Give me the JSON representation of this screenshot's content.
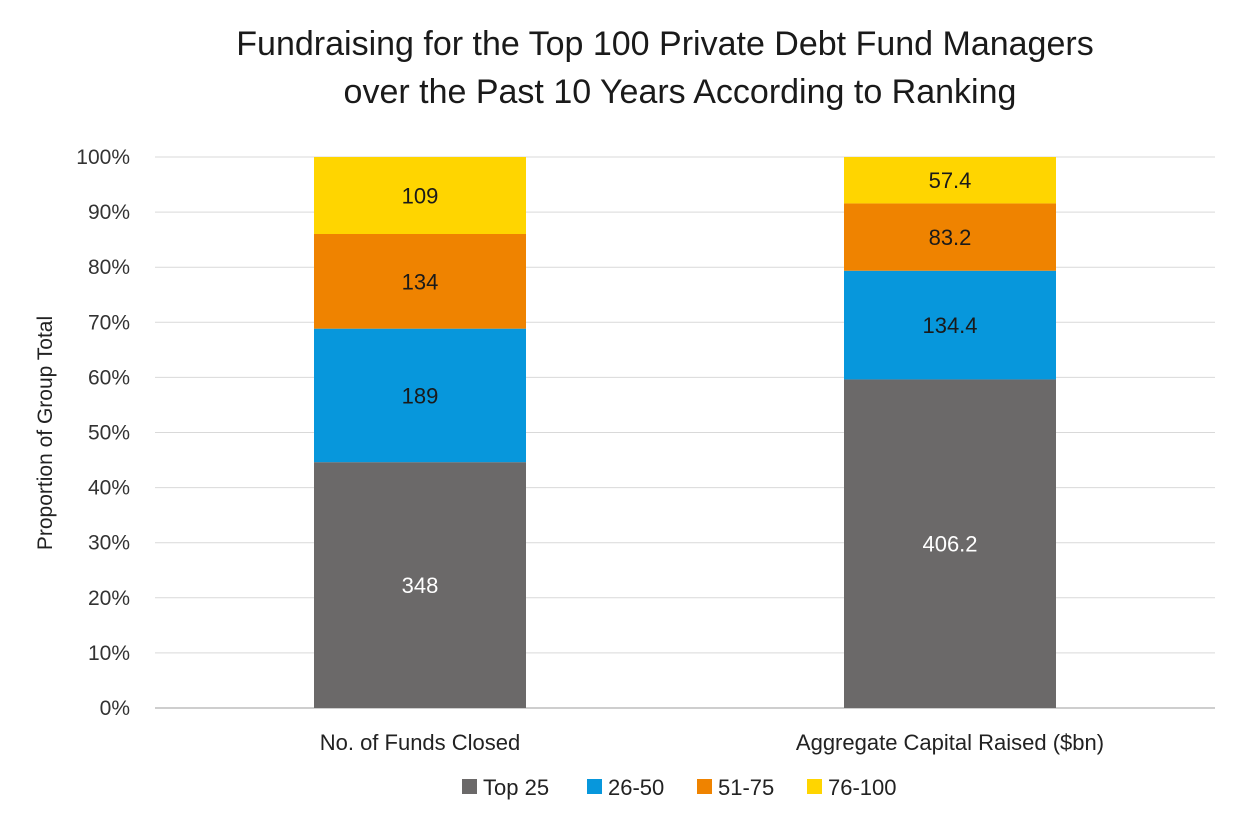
{
  "chart_data": {
    "type": "bar",
    "stacked": true,
    "normalized": true,
    "title": [
      "Fundraising for the Top 100 Private Debt Fund Managers",
      "over the Past 10 Years According to Ranking"
    ],
    "ylabel": "Proportion of Group Total",
    "ylim": [
      0,
      100
    ],
    "yticks": [
      "0%",
      "10%",
      "20%",
      "30%",
      "40%",
      "50%",
      "60%",
      "70%",
      "80%",
      "90%",
      "100%"
    ],
    "categories": [
      "No. of Funds Closed",
      "Aggregate Capital Raised ($bn)"
    ],
    "series": [
      {
        "name": "Top 25",
        "color": "#6b6969",
        "label_color": "#ffffff",
        "values": [
          348,
          406.2
        ],
        "labels": [
          "348",
          "406.2"
        ]
      },
      {
        "name": "26-50",
        "color": "#0797dc",
        "label_color": "#1a1a1a",
        "values": [
          189,
          134.4
        ],
        "labels": [
          "189",
          "134.4"
        ]
      },
      {
        "name": "51-75",
        "color": "#ef8300",
        "label_color": "#1a1a1a",
        "values": [
          134,
          83.2
        ],
        "labels": [
          "134",
          "83.2"
        ]
      },
      {
        "name": "76-100",
        "color": "#ffd500",
        "label_color": "#1a1a1a",
        "values": [
          109,
          57.4
        ],
        "labels": [
          "109",
          "57.4"
        ]
      }
    ],
    "grid": true,
    "legend_position": "bottom"
  }
}
